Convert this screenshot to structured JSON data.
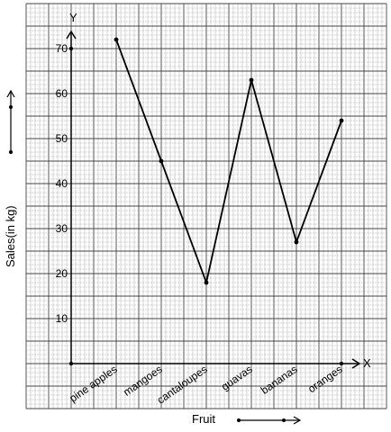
{
  "chart_data": {
    "type": "line",
    "categories": [
      "pine apples",
      "mangoes",
      "cantaloupes",
      "guavas",
      "bananas",
      "oranges"
    ],
    "series": [
      {
        "values": [
          72,
          45,
          18,
          63,
          27,
          54
        ]
      }
    ],
    "title": "",
    "xlabel": "Fruit",
    "ylabel": "Sales(in kg)",
    "x_axis_letter": "X",
    "y_axis_letter": "Y",
    "y_ticks": [
      10,
      20,
      30,
      40,
      50,
      60,
      70
    ],
    "ylim": [
      0,
      70
    ],
    "grid": true,
    "legend": "none",
    "colors": {
      "line": "#000000",
      "grid_minor": "#aaaaaa",
      "grid_major": "#444444"
    }
  }
}
